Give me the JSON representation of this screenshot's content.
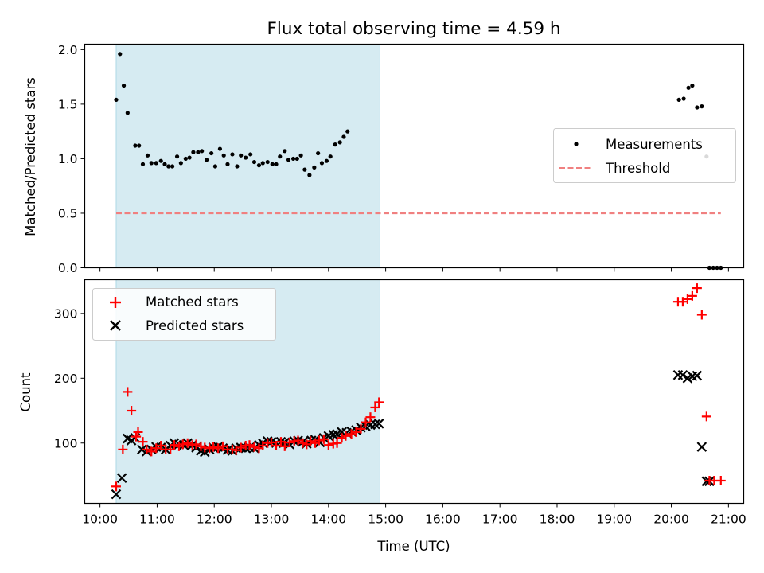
{
  "title": "Flux total observing time = 4.59 h",
  "colors": {
    "shade": "#add8e6",
    "threshold": "#f08080",
    "matched": "#ff0000",
    "predicted": "#000000",
    "measure": "#000000"
  },
  "chart_data": [
    {
      "type": "scatter",
      "ylabel": "Matched/Predicted stars",
      "xlabel": "",
      "xlim": [
        "10:00",
        "21:00"
      ],
      "ylim": [
        0,
        2.05
      ],
      "yticks": [
        "0.0",
        "0.5",
        "1.0",
        "1.5",
        "2.0"
      ],
      "shaded_region": [
        "10:17",
        "14:54"
      ],
      "legend_placement": "center-right",
      "series": [
        {
          "name": "Measurements",
          "marker": "dot",
          "points": [
            [
              "10:17",
              1.54
            ],
            [
              "10:21",
              1.96
            ],
            [
              "10:25",
              1.67
            ],
            [
              "10:29",
              1.42
            ],
            [
              "10:37",
              1.12
            ],
            [
              "10:41",
              1.12
            ],
            [
              "10:45",
              0.95
            ],
            [
              "10:50",
              1.03
            ],
            [
              "10:54",
              0.96
            ],
            [
              "10:59",
              0.96
            ],
            [
              "11:04",
              0.98
            ],
            [
              "11:08",
              0.95
            ],
            [
              "11:12",
              0.93
            ],
            [
              "11:16",
              0.93
            ],
            [
              "11:21",
              1.02
            ],
            [
              "11:25",
              0.96
            ],
            [
              "11:30",
              1.0
            ],
            [
              "11:34",
              1.01
            ],
            [
              "11:38",
              1.06
            ],
            [
              "11:43",
              1.06
            ],
            [
              "11:47",
              1.07
            ],
            [
              "11:52",
              0.99
            ],
            [
              "11:57",
              1.05
            ],
            [
              "12:01",
              0.93
            ],
            [
              "12:06",
              1.09
            ],
            [
              "12:10",
              1.03
            ],
            [
              "12:14",
              0.95
            ],
            [
              "12:19",
              1.04
            ],
            [
              "12:24",
              0.93
            ],
            [
              "12:28",
              1.03
            ],
            [
              "12:33",
              1.01
            ],
            [
              "12:38",
              1.04
            ],
            [
              "12:42",
              0.97
            ],
            [
              "12:47",
              0.94
            ],
            [
              "12:51",
              0.96
            ],
            [
              "12:56",
              0.97
            ],
            [
              "13:01",
              0.95
            ],
            [
              "13:05",
              0.95
            ],
            [
              "13:09",
              1.02
            ],
            [
              "13:14",
              1.07
            ],
            [
              "13:18",
              0.99
            ],
            [
              "13:23",
              1.0
            ],
            [
              "13:27",
              1.0
            ],
            [
              "13:31",
              1.03
            ],
            [
              "13:35",
              0.9
            ],
            [
              "13:40",
              0.85
            ],
            [
              "13:45",
              0.92
            ],
            [
              "13:49",
              1.05
            ],
            [
              "13:53",
              0.96
            ],
            [
              "13:58",
              0.98
            ],
            [
              "14:02",
              1.02
            ],
            [
              "14:07",
              1.13
            ],
            [
              "14:12",
              1.15
            ],
            [
              "14:16",
              1.2
            ],
            [
              "14:20",
              1.25
            ],
            [
              "20:08",
              1.54
            ],
            [
              "20:13",
              1.55
            ],
            [
              "20:18",
              1.65
            ],
            [
              "20:22",
              1.67
            ],
            [
              "20:27",
              1.47
            ],
            [
              "20:32",
              1.48
            ],
            [
              "20:37",
              1.02
            ],
            [
              "20:40",
              0.0
            ],
            [
              "20:44",
              0.0
            ],
            [
              "20:48",
              0.0
            ],
            [
              "20:52",
              0.0
            ]
          ]
        },
        {
          "name": "Threshold",
          "marker": "dashed-line",
          "points": [
            [
              "10:17",
              0.5
            ],
            [
              "20:52",
              0.5
            ]
          ]
        }
      ]
    },
    {
      "type": "scatter",
      "ylabel": "Count",
      "xlabel": "Time (UTC)",
      "xlim": [
        "10:00",
        "21:00"
      ],
      "ylim": [
        7,
        352
      ],
      "yticks": [
        "100",
        "200",
        "300"
      ],
      "xticks": [
        "10:00",
        "11:00",
        "12:00",
        "13:00",
        "14:00",
        "15:00",
        "16:00",
        "17:00",
        "18:00",
        "19:00",
        "20:00",
        "21:00"
      ],
      "shaded_region": [
        "10:17",
        "14:54"
      ],
      "legend_placement": "top-left",
      "series": [
        {
          "name": "Matched stars",
          "marker": "plus",
          "points": [
            [
              "10:17",
              33
            ],
            [
              "10:24",
              90
            ],
            [
              "10:29",
              179
            ],
            [
              "10:33",
              150
            ],
            [
              "10:38",
              110
            ],
            [
              "10:40",
              117
            ],
            [
              "10:45",
              102
            ],
            [
              "10:49",
              90
            ],
            [
              "10:54",
              87
            ],
            [
              "10:59",
              92
            ],
            [
              "11:04",
              96
            ],
            [
              "11:09",
              90
            ],
            [
              "11:14",
              90
            ],
            [
              "11:18",
              97
            ],
            [
              "11:23",
              95
            ],
            [
              "11:27",
              98
            ],
            [
              "11:32",
              100
            ],
            [
              "11:37",
              97
            ],
            [
              "11:41",
              98
            ],
            [
              "11:46",
              95
            ],
            [
              "11:50",
              93
            ],
            [
              "11:55",
              92
            ],
            [
              "11:59",
              94
            ],
            [
              "12:04",
              92
            ],
            [
              "12:09",
              95
            ],
            [
              "12:14",
              90
            ],
            [
              "12:19",
              90
            ],
            [
              "12:23",
              89
            ],
            [
              "12:28",
              93
            ],
            [
              "12:33",
              96
            ],
            [
              "12:37",
              97
            ],
            [
              "12:42",
              94
            ],
            [
              "12:47",
              92
            ],
            [
              "12:51",
              96
            ],
            [
              "12:56",
              100
            ],
            [
              "13:00",
              101
            ],
            [
              "13:05",
              96
            ],
            [
              "13:10",
              102
            ],
            [
              "13:14",
              95
            ],
            [
              "13:19",
              101
            ],
            [
              "13:24",
              103
            ],
            [
              "13:28",
              104
            ],
            [
              "13:33",
              100
            ],
            [
              "13:37",
              98
            ],
            [
              "13:41",
              103
            ],
            [
              "13:46",
              100
            ],
            [
              "13:50",
              104
            ],
            [
              "13:55",
              106
            ],
            [
              "14:00",
              97
            ],
            [
              "14:05",
              99
            ],
            [
              "14:09",
              100
            ],
            [
              "14:14",
              108
            ],
            [
              "14:18",
              111
            ],
            [
              "14:24",
              114
            ],
            [
              "14:29",
              117
            ],
            [
              "14:34",
              122
            ],
            [
              "14:39",
              132
            ],
            [
              "14:44",
              140
            ],
            [
              "14:49",
              155
            ],
            [
              "14:53",
              163
            ],
            [
              "20:07",
              318
            ],
            [
              "20:12",
              318
            ],
            [
              "20:17",
              322
            ],
            [
              "20:22",
              327
            ],
            [
              "20:27",
              339
            ],
            [
              "20:32",
              298
            ],
            [
              "20:37",
              141
            ],
            [
              "20:40",
              42
            ],
            [
              "20:45",
              42
            ],
            [
              "20:52",
              42
            ]
          ]
        },
        {
          "name": "Predicted stars",
          "marker": "cross",
          "points": [
            [
              "10:17",
              21
            ],
            [
              "10:23",
              46
            ],
            [
              "10:29",
              107
            ],
            [
              "10:33",
              104
            ],
            [
              "10:37",
              108
            ],
            [
              "10:44",
              90
            ],
            [
              "10:49",
              87
            ],
            [
              "10:54",
              90
            ],
            [
              "10:59",
              94
            ],
            [
              "11:04",
              93
            ],
            [
              "11:09",
              90
            ],
            [
              "11:14",
              96
            ],
            [
              "11:18",
              100
            ],
            [
              "11:23",
              98
            ],
            [
              "11:28",
              97
            ],
            [
              "11:32",
              100
            ],
            [
              "11:37",
              97
            ],
            [
              "11:41",
              93
            ],
            [
              "11:46",
              88
            ],
            [
              "11:50",
              86
            ],
            [
              "11:55",
              90
            ],
            [
              "11:59",
              93
            ],
            [
              "12:04",
              94
            ],
            [
              "12:09",
              92
            ],
            [
              "12:14",
              89
            ],
            [
              "12:19",
              88
            ],
            [
              "12:23",
              92
            ],
            [
              "12:28",
              93
            ],
            [
              "12:33",
              92
            ],
            [
              "12:37",
              93
            ],
            [
              "12:42",
              92
            ],
            [
              "12:47",
              97
            ],
            [
              "12:51",
              100
            ],
            [
              "12:56",
              103
            ],
            [
              "13:00",
              102
            ],
            [
              "13:05",
              100
            ],
            [
              "13:10",
              102
            ],
            [
              "13:14",
              101
            ],
            [
              "13:19",
              98
            ],
            [
              "13:24",
              103
            ],
            [
              "13:28",
              104
            ],
            [
              "13:33",
              102
            ],
            [
              "13:37",
              99
            ],
            [
              "13:42",
              104
            ],
            [
              "13:46",
              105
            ],
            [
              "13:51",
              101
            ],
            [
              "13:55",
              108
            ],
            [
              "14:00",
              111
            ],
            [
              "14:05",
              113
            ],
            [
              "14:09",
              114
            ],
            [
              "14:14",
              117
            ],
            [
              "14:19",
              116
            ],
            [
              "14:24",
              118
            ],
            [
              "14:29",
              120
            ],
            [
              "14:34",
              124
            ],
            [
              "14:39",
              126
            ],
            [
              "14:44",
              128
            ],
            [
              "14:49",
              129
            ],
            [
              "14:53",
              130
            ],
            [
              "20:07",
              205
            ],
            [
              "20:12",
              205
            ],
            [
              "20:17",
              200
            ],
            [
              "20:22",
              203
            ],
            [
              "20:27",
              204
            ],
            [
              "20:32",
              94
            ],
            [
              "20:37",
              41
            ],
            [
              "20:40",
              41
            ]
          ]
        }
      ]
    }
  ]
}
